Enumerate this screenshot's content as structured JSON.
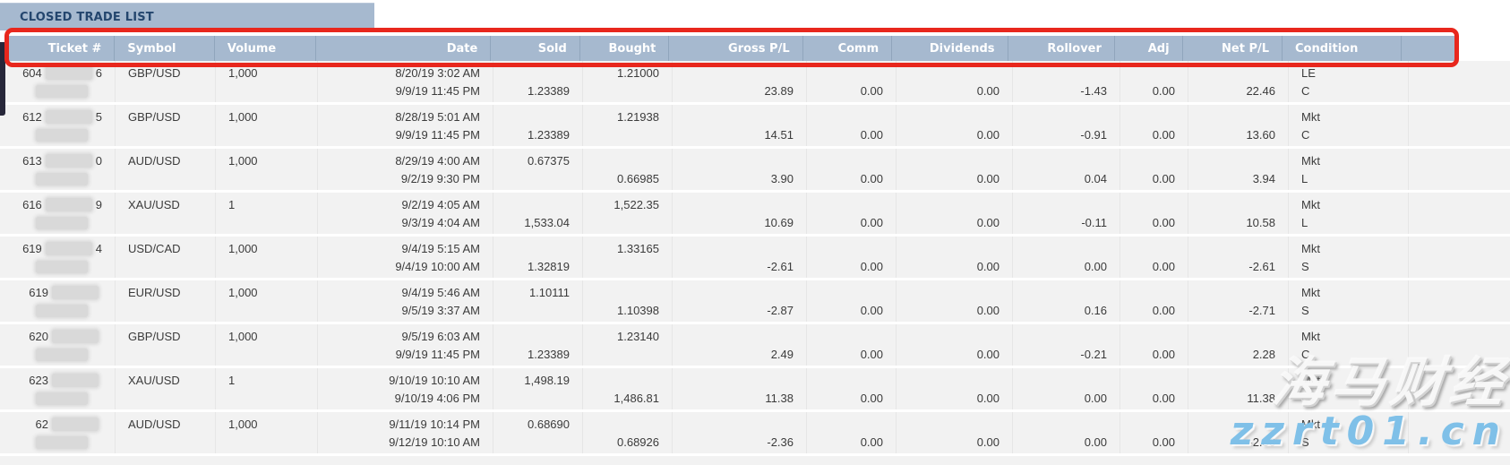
{
  "title": "CLOSED TRADE LIST",
  "colors": {
    "header_bg": "#a6b9cf",
    "annotation_red": "#e8271d",
    "row_bg": "#f2f2f2",
    "watermark_blue": "#7fc0e8"
  },
  "columns": [
    "Ticket #",
    "Symbol",
    "Volume",
    "Date",
    "Sold",
    "Bought",
    "Gross P/L",
    "Comm",
    "Dividends",
    "Rollover",
    "Adj",
    "Net P/L",
    "Condition"
  ],
  "rows": [
    {
      "ticket_prefix": "604",
      "ticket_suffix": "6",
      "symbol": "GBP/USD",
      "volume": "1,000",
      "date_open": "8/20/19 3:02 AM",
      "date_close": "9/9/19 11:45 PM",
      "sold_l1": "",
      "sold_l2": "1.23389",
      "bought_l1": "1.21000",
      "bought_l2": "",
      "gross": "23.89",
      "comm": "0.00",
      "dividends": "0.00",
      "rollover": "-1.43",
      "adj": "0.00",
      "net": "22.46",
      "cond_l1": "LE",
      "cond_l2": "C"
    },
    {
      "ticket_prefix": "612",
      "ticket_suffix": "5",
      "symbol": "GBP/USD",
      "volume": "1,000",
      "date_open": "8/28/19 5:01 AM",
      "date_close": "9/9/19 11:45 PM",
      "sold_l1": "",
      "sold_l2": "1.23389",
      "bought_l1": "1.21938",
      "bought_l2": "",
      "gross": "14.51",
      "comm": "0.00",
      "dividends": "0.00",
      "rollover": "-0.91",
      "adj": "0.00",
      "net": "13.60",
      "cond_l1": "Mkt",
      "cond_l2": "C"
    },
    {
      "ticket_prefix": "613",
      "ticket_suffix": "0",
      "symbol": "AUD/USD",
      "volume": "1,000",
      "date_open": "8/29/19 4:00 AM",
      "date_close": "9/2/19 9:30 PM",
      "sold_l1": "0.67375",
      "sold_l2": "",
      "bought_l1": "",
      "bought_l2": "0.66985",
      "gross": "3.90",
      "comm": "0.00",
      "dividends": "0.00",
      "rollover": "0.04",
      "adj": "0.00",
      "net": "3.94",
      "cond_l1": "Mkt",
      "cond_l2": "L"
    },
    {
      "ticket_prefix": "616",
      "ticket_suffix": "9",
      "symbol": "XAU/USD",
      "volume": "1",
      "date_open": "9/2/19 4:05 AM",
      "date_close": "9/3/19 4:04 AM",
      "sold_l1": "",
      "sold_l2": "1,533.04",
      "bought_l1": "1,522.35",
      "bought_l2": "",
      "gross": "10.69",
      "comm": "0.00",
      "dividends": "0.00",
      "rollover": "-0.11",
      "adj": "0.00",
      "net": "10.58",
      "cond_l1": "Mkt",
      "cond_l2": "L"
    },
    {
      "ticket_prefix": "619",
      "ticket_suffix": "4",
      "symbol": "USD/CAD",
      "volume": "1,000",
      "date_open": "9/4/19 5:15 AM",
      "date_close": "9/4/19 10:00 AM",
      "sold_l1": "",
      "sold_l2": "1.32819",
      "bought_l1": "1.33165",
      "bought_l2": "",
      "gross": "-2.61",
      "comm": "0.00",
      "dividends": "0.00",
      "rollover": "0.00",
      "adj": "0.00",
      "net": "-2.61",
      "cond_l1": "Mkt",
      "cond_l2": "S"
    },
    {
      "ticket_prefix": "619",
      "ticket_suffix": "",
      "symbol": "EUR/USD",
      "volume": "1,000",
      "date_open": "9/4/19 5:46 AM",
      "date_close": "9/5/19 3:37 AM",
      "sold_l1": "1.10111",
      "sold_l2": "",
      "bought_l1": "",
      "bought_l2": "1.10398",
      "gross": "-2.87",
      "comm": "0.00",
      "dividends": "0.00",
      "rollover": "0.16",
      "adj": "0.00",
      "net": "-2.71",
      "cond_l1": "Mkt",
      "cond_l2": "S"
    },
    {
      "ticket_prefix": "620",
      "ticket_suffix": "",
      "symbol": "GBP/USD",
      "volume": "1,000",
      "date_open": "9/5/19 6:03 AM",
      "date_close": "9/9/19 11:45 PM",
      "sold_l1": "",
      "sold_l2": "1.23389",
      "bought_l1": "1.23140",
      "bought_l2": "",
      "gross": "2.49",
      "comm": "0.00",
      "dividends": "0.00",
      "rollover": "-0.21",
      "adj": "0.00",
      "net": "2.28",
      "cond_l1": "Mkt",
      "cond_l2": "C"
    },
    {
      "ticket_prefix": "623",
      "ticket_suffix": "",
      "symbol": "XAU/USD",
      "volume": "1",
      "date_open": "9/10/19 10:10 AM",
      "date_close": "9/10/19 4:06 PM",
      "sold_l1": "1,498.19",
      "sold_l2": "",
      "bought_l1": "",
      "bought_l2": "1,486.81",
      "gross": "11.38",
      "comm": "0.00",
      "dividends": "0.00",
      "rollover": "0.00",
      "adj": "0.00",
      "net": "11.38",
      "cond_l1": "Mkt",
      "cond_l2": "L"
    },
    {
      "ticket_prefix": "62",
      "ticket_suffix": "",
      "symbol": "AUD/USD",
      "volume": "1,000",
      "date_open": "9/11/19 10:14 PM",
      "date_close": "9/12/19 10:10 AM",
      "sold_l1": "0.68690",
      "sold_l2": "",
      "bought_l1": "",
      "bought_l2": "0.68926",
      "gross": "-2.36",
      "comm": "0.00",
      "dividends": "0.00",
      "rollover": "0.00",
      "adj": "0.00",
      "net": "-2.36",
      "cond_l1": "Mkt",
      "cond_l2": "S"
    }
  ],
  "watermark": {
    "line1": "海马财经",
    "line2": "zzrt01.cn"
  }
}
